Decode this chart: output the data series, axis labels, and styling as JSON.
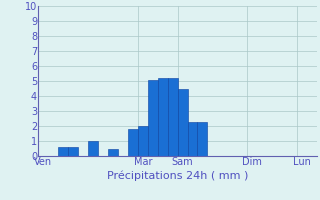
{
  "bar_values": [
    0,
    0,
    0.6,
    0.6,
    0,
    1.0,
    0,
    0.5,
    0,
    1.8,
    2.0,
    5.1,
    5.2,
    5.2,
    4.5,
    2.3,
    2.3,
    0,
    0,
    0,
    0,
    0,
    0,
    0,
    0,
    0,
    0,
    0
  ],
  "n_bars": 28,
  "ylim": [
    0,
    10
  ],
  "yticks": [
    0,
    1,
    2,
    3,
    4,
    5,
    6,
    7,
    8,
    9,
    10
  ],
  "day_labels": [
    "Ven",
    "Mar",
    "Sam",
    "Dim",
    "Lun"
  ],
  "day_positions": [
    0,
    10,
    14,
    21,
    26
  ],
  "xlabel": "Précipitations 24h ( mm )",
  "bar_color": "#1a6fd4",
  "bar_edge_color": "#0a40a0",
  "bg_color": "#dff2f2",
  "grid_color": "#aac8c8",
  "axis_color": "#6060b0",
  "label_color": "#5050c0",
  "tick_color": "#5050c0",
  "xlabel_fontsize": 8,
  "ytick_fontsize": 7,
  "xtick_fontsize": 7
}
